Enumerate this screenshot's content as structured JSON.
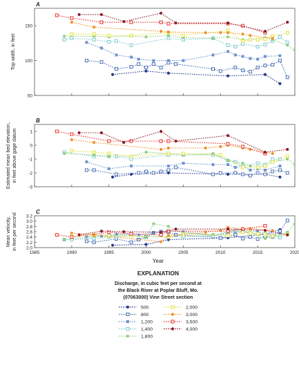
{
  "figure": {
    "x_axis_label": "Year",
    "x_ticks": [
      1985,
      1990,
      1995,
      2000,
      2005,
      2010,
      2015,
      2020
    ],
    "x_range": [
      1985,
      2020
    ]
  },
  "explanation": {
    "title": "EXPLANATION",
    "caption_line1": "Discharge, in cubic feet per second at",
    "caption_line2": "the Black River at Poplar Bluff, Mo.",
    "caption_line3": "(07063000) Vine Street section"
  },
  "legend": [
    {
      "label": "500",
      "color": "#283b8c",
      "marker": "circle"
    },
    {
      "label": "800",
      "color": "#4a6fb5",
      "marker": "square-open"
    },
    {
      "label": "1,200",
      "color": "#6d94cf",
      "marker": "square"
    },
    {
      "label": "1,400",
      "color": "#7fcad0",
      "marker": "square-open"
    },
    {
      "label": "1,800",
      "color": "#93cf80",
      "marker": "circle"
    },
    {
      "label": "2,000",
      "color": "#e0e23c",
      "marker": "square-open"
    },
    {
      "label": "3,000",
      "color": "#f0922b",
      "marker": "circle"
    },
    {
      "label": "3,500",
      "color": "#e3332a",
      "marker": "square-open"
    },
    {
      "label": "4,000",
      "color": "#8c1e2a",
      "marker": "circle"
    }
  ],
  "chart_data": [
    {
      "type": "line",
      "panel_letter": "A",
      "ylabel": "Top width, in feet",
      "ylim": [
        50,
        175
      ],
      "yticks": [
        50,
        100,
        150
      ],
      "xlim": [
        1985,
        2020
      ],
      "series": [
        {
          "name": "500",
          "x": [
            1995.5,
            2000,
            2003,
            2011,
            2016,
            2018
          ],
          "values": [
            80,
            85,
            82,
            78,
            80,
            67
          ]
        },
        {
          "name": "800",
          "x": [
            1992,
            1994,
            1996,
            1998,
            1999,
            2000,
            2001,
            2002,
            2003,
            2004,
            2009,
            2010,
            2012,
            2013,
            2014,
            2015,
            2016,
            2017,
            2018,
            2019
          ],
          "values": [
            100,
            98,
            88,
            91,
            95,
            90,
            95,
            90,
            97,
            95,
            88,
            85,
            90,
            86,
            84,
            90,
            93,
            94,
            100,
            76
          ]
        },
        {
          "name": "1,200",
          "x": [
            1992,
            1994,
            1996,
            1998,
            1999,
            2001,
            2003,
            2005,
            2009,
            2011,
            2012,
            2013,
            2014,
            2015,
            2016,
            2018
          ],
          "values": [
            126,
            118,
            108,
            105,
            102,
            100,
            100,
            100,
            108,
            113,
            108,
            106,
            103,
            102,
            106,
            107
          ]
        },
        {
          "name": "1,400",
          "x": [
            1989,
            1990,
            1993,
            1995,
            1996,
            1998,
            2003,
            2005,
            2009,
            2011,
            2012,
            2013,
            2015,
            2016,
            2017,
            2018,
            2019
          ],
          "values": [
            130,
            132,
            130,
            127,
            128,
            122,
            132,
            130,
            132,
            122,
            120,
            124,
            120,
            123,
            128,
            134,
            126
          ]
        },
        {
          "name": "1,800",
          "x": [
            1989,
            1993,
            1995,
            1998,
            2000,
            2003,
            2005,
            2009,
            2011,
            2013,
            2014,
            2016,
            2017,
            2019,
            2020
          ],
          "values": [
            135,
            135,
            134,
            135,
            134,
            136,
            133,
            132,
            134,
            130,
            130,
            133,
            130,
            122,
            115
          ]
        },
        {
          "name": "2,000",
          "x": [
            1990,
            1993,
            1995,
            1998,
            2003,
            2005,
            2011,
            2013,
            2014,
            2015,
            2016,
            2017,
            2019
          ],
          "values": [
            138,
            138,
            136,
            136,
            140,
            136,
            143,
            128,
            130,
            130,
            131,
            135,
            140
          ]
        },
        {
          "name": "3,000",
          "x": [
            1990,
            1993,
            2002,
            2003,
            2008,
            2010,
            2011,
            2013,
            2014,
            2017
          ],
          "values": [
            155,
            148,
            142,
            141,
            140,
            140,
            140,
            138,
            136,
            132
          ]
        },
        {
          "name": "3,500",
          "x": [
            1988,
            1990,
            1994,
            1998,
            2002,
            2003,
            2011,
            2013,
            2016
          ],
          "values": [
            165,
            161,
            155,
            155,
            155,
            153,
            153,
            150,
            140
          ]
        },
        {
          "name": "4,000",
          "x": [
            1991,
            1994,
            1997,
            2002,
            2004,
            2011,
            2016,
            2019
          ],
          "values": [
            166,
            166,
            156,
            168,
            154,
            154,
            142,
            155
          ]
        }
      ]
    },
    {
      "type": "line",
      "panel_letter": "B",
      "ylabel": "Estimated mean bed elevation, in feet above gage datum",
      "ylim": [
        -3,
        1.5
      ],
      "yticks": [
        -3,
        -2,
        -1,
        0,
        1
      ],
      "xlim": [
        1985,
        2020
      ],
      "series": [
        {
          "name": "500",
          "x": [
            1995.5,
            1998,
            2003,
            2011,
            2016,
            2018
          ],
          "values": [
            -2.3,
            -2.1,
            -2.0,
            -2.1,
            -2.1,
            -2.3
          ]
        },
        {
          "name": "800",
          "x": [
            1992,
            1993,
            1996,
            1999,
            2000,
            2001,
            2002,
            2003,
            2004,
            2009,
            2010,
            2012,
            2013,
            2014,
            2015,
            2016,
            2017,
            2018,
            2019
          ],
          "values": [
            -1.8,
            -1.8,
            -2.1,
            -2.0,
            -1.9,
            -2.0,
            -1.9,
            -1.8,
            -1.6,
            -2.1,
            -2.0,
            -2.0,
            -2.1,
            -2.2,
            -2.0,
            -2.1,
            -1.9,
            -1.8,
            -2.0
          ]
        },
        {
          "name": "1,200",
          "x": [
            1992,
            1995,
            1998,
            2003,
            2005,
            2009,
            2011,
            2012,
            2013,
            2014,
            2015,
            2016,
            2018
          ],
          "values": [
            -1.2,
            -1.7,
            -1.5,
            -1.5,
            -1.3,
            -1.4,
            -1.4,
            -1.6,
            -1.5,
            -1.8,
            -1.7,
            -1.8,
            -1.5
          ]
        },
        {
          "name": "1,400",
          "x": [
            1989,
            1993,
            1995,
            1996,
            1998,
            2003,
            2005,
            2009,
            2011,
            2012,
            2013,
            2015,
            2016,
            2017,
            2018
          ],
          "values": [
            -0.5,
            -0.8,
            -0.8,
            -0.8,
            -1.0,
            -0.7,
            -0.7,
            -0.7,
            -1.1,
            -1.2,
            -1.5,
            -1.3,
            -1.4,
            -1.0,
            -1.0
          ]
        },
        {
          "name": "1,800",
          "x": [
            1989,
            1993,
            1995,
            1998,
            2000,
            2003,
            2005,
            2009,
            2011,
            2013,
            2014,
            2016,
            2017,
            2019,
            2020
          ],
          "values": [
            -0.6,
            -0.7,
            -0.8,
            -0.8,
            -0.5,
            -0.6,
            -0.7,
            -0.6,
            -1.1,
            -1.3,
            -1.5,
            -1.5,
            -1.2,
            -1.0,
            -1.4
          ]
        },
        {
          "name": "2,000",
          "x": [
            1990,
            1993,
            1995,
            1998,
            2003,
            2005,
            2010,
            2013,
            2015,
            2016,
            2017,
            2019
          ],
          "values": [
            -0.4,
            -0.5,
            -0.6,
            -0.8,
            -0.6,
            -0.6,
            -0.7,
            -1.6,
            -1.6,
            -1.5,
            -1.2,
            -0.8
          ]
        },
        {
          "name": "3,000",
          "x": [
            1990,
            1993,
            2002,
            2003,
            2008,
            2010,
            2011,
            2013,
            2014,
            2017
          ],
          "values": [
            0.4,
            0.2,
            -0.3,
            -0.2,
            -0.2,
            -0.1,
            0.0,
            -0.2,
            -0.3,
            -0.6
          ]
        },
        {
          "name": "3,500",
          "x": [
            1988,
            1990,
            1995,
            1998,
            2002,
            2003,
            2011,
            2013,
            2016
          ],
          "values": [
            1.0,
            0.8,
            0.3,
            0.3,
            0.3,
            0.3,
            0.1,
            -0.1,
            -0.6
          ]
        },
        {
          "name": "4,000",
          "x": [
            1991,
            1994,
            1997,
            2002,
            2004,
            2011,
            2016,
            2019
          ],
          "values": [
            0.9,
            0.9,
            0.2,
            1.0,
            0.3,
            0.7,
            -0.5,
            -0.3
          ]
        }
      ]
    },
    {
      "type": "line",
      "panel_letter": "C",
      "ylabel": "Mean velocity, in feet per second",
      "ylim": [
        2.0,
        3.2
      ],
      "yticks": [
        2.0,
        2.2,
        2.4,
        2.6,
        2.8,
        3.0,
        3.2
      ],
      "xlim": [
        1985,
        2020
      ],
      "series": [
        {
          "name": "500",
          "x": [
            1995.5,
            2000,
            2003,
            2011,
            2016,
            2018
          ],
          "values": [
            2.09,
            2.12,
            2.3,
            2.37,
            2.5,
            2.68
          ]
        },
        {
          "name": "800",
          "x": [
            1992,
            1993,
            1996,
            1998,
            1999,
            2000,
            2001,
            2002,
            2003,
            2004,
            2009,
            2010,
            2012,
            2013,
            2014,
            2015,
            2016,
            2017,
            2018,
            2019
          ],
          "values": [
            2.24,
            2.2,
            2.33,
            2.2,
            2.3,
            2.4,
            2.56,
            2.6,
            2.58,
            2.48,
            2.4,
            2.36,
            2.48,
            2.34,
            2.4,
            2.32,
            2.42,
            2.4,
            2.62,
            3.02
          ]
        },
        {
          "name": "1,200",
          "x": [
            1992,
            1994,
            1996,
            1998,
            1999,
            2001,
            2003,
            2005,
            2009,
            2011,
            2012,
            2013,
            2014,
            2015,
            2016,
            2018
          ],
          "values": [
            2.4,
            2.44,
            2.5,
            2.52,
            2.47,
            2.57,
            2.62,
            2.6,
            2.45,
            2.52,
            2.58,
            2.6,
            2.58,
            2.62,
            2.5,
            2.55
          ]
        },
        {
          "name": "1,400",
          "x": [
            1989,
            1990,
            1993,
            1995,
            1996,
            1998,
            2003,
            2005,
            2009,
            2011,
            2012,
            2013,
            2015,
            2016,
            2017,
            2018,
            2019
          ],
          "values": [
            2.3,
            2.3,
            2.35,
            2.4,
            2.4,
            2.45,
            2.4,
            2.42,
            2.44,
            2.58,
            2.65,
            2.6,
            2.5,
            2.52,
            2.42,
            2.38,
            2.55
          ]
        },
        {
          "name": "1,800",
          "x": [
            1989,
            1993,
            1995,
            1998,
            2000,
            2001,
            2003,
            2005,
            2009,
            2011,
            2013,
            2014,
            2016,
            2017,
            2019,
            2020
          ],
          "values": [
            2.3,
            2.42,
            2.46,
            2.48,
            2.38,
            2.9,
            2.8,
            2.55,
            2.5,
            2.58,
            2.65,
            2.58,
            2.34,
            2.4,
            2.58,
            2.9
          ]
        },
        {
          "name": "2,000",
          "x": [
            1990,
            1993,
            1995,
            1998,
            2003,
            2005,
            2011,
            2013,
            2014,
            2015,
            2016,
            2017,
            2019
          ],
          "values": [
            2.42,
            2.48,
            2.44,
            2.44,
            2.4,
            2.5,
            2.45,
            2.58,
            2.55,
            2.52,
            2.5,
            2.44,
            2.5
          ]
        },
        {
          "name": "3,000",
          "x": [
            1990,
            1993,
            2002,
            2003,
            2008,
            2010,
            2011,
            2013,
            2014,
            2017
          ],
          "values": [
            2.55,
            2.48,
            2.22,
            2.45,
            2.58,
            2.65,
            2.76,
            2.72,
            2.72,
            2.64
          ]
        },
        {
          "name": "3,500",
          "x": [
            1988,
            1990,
            1995,
            1998,
            2002,
            2003,
            2011,
            2013,
            2016
          ],
          "values": [
            2.48,
            2.4,
            2.58,
            2.52,
            2.48,
            2.62,
            2.62,
            2.7,
            2.82
          ]
        },
        {
          "name": "4,000",
          "x": [
            1991,
            1994,
            1997,
            2002,
            2004,
            2011,
            2016,
            2019
          ],
          "values": [
            2.48,
            2.62,
            2.6,
            2.58,
            2.7,
            2.7,
            2.65,
            2.48
          ]
        }
      ]
    }
  ]
}
